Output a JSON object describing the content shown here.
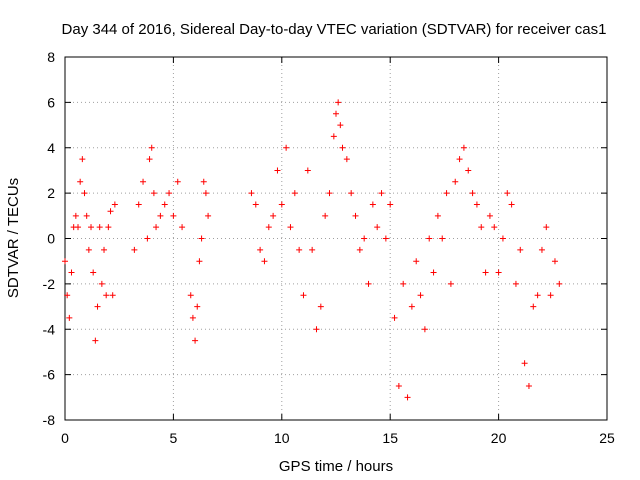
{
  "chart_data": {
    "type": "scatter",
    "title": "Day 344 of 2016, Sidereal Day-to-day VTEC variation (SDTVAR) for receiver cas1",
    "xlabel": "GPS time / hours",
    "ylabel": "SDTVAR / TECUs",
    "xlim": [
      0,
      25
    ],
    "ylim": [
      -8,
      8
    ],
    "xticks": [
      0,
      5,
      10,
      15,
      20,
      25
    ],
    "yticks": [
      -8,
      -6,
      -4,
      -2,
      0,
      2,
      4,
      6,
      8
    ],
    "grid": true,
    "marker": "+",
    "series": [
      {
        "name": "SDTVAR",
        "color": "#ff0000",
        "x": [
          0.0,
          0.1,
          0.2,
          0.3,
          0.4,
          0.5,
          0.6,
          0.7,
          0.8,
          0.9,
          1.0,
          1.1,
          1.2,
          1.3,
          1.4,
          1.5,
          1.6,
          1.7,
          1.8,
          1.9,
          2.0,
          2.1,
          2.2,
          2.3,
          3.2,
          3.4,
          3.6,
          3.8,
          3.9,
          4.0,
          4.1,
          4.2,
          4.4,
          4.6,
          4.8,
          5.0,
          5.2,
          5.4,
          5.8,
          5.9,
          6.0,
          6.1,
          6.2,
          6.3,
          6.4,
          6.5,
          6.6,
          8.6,
          8.8,
          9.0,
          9.2,
          9.4,
          9.6,
          9.8,
          10.0,
          10.2,
          10.4,
          10.6,
          10.8,
          11.0,
          11.2,
          11.4,
          11.6,
          11.8,
          12.0,
          12.2,
          12.4,
          12.5,
          12.6,
          12.7,
          12.8,
          13.0,
          13.2,
          13.4,
          13.6,
          13.8,
          14.0,
          14.2,
          14.4,
          14.6,
          14.8,
          15.0,
          15.2,
          15.4,
          15.6,
          15.8,
          16.0,
          16.2,
          16.4,
          16.6,
          16.8,
          17.0,
          17.2,
          17.4,
          17.6,
          17.8,
          18.0,
          18.2,
          18.4,
          18.6,
          18.8,
          19.0,
          19.2,
          19.4,
          19.6,
          19.8,
          20.0,
          20.2,
          20.4,
          20.6,
          20.8,
          21.0,
          21.2,
          21.4,
          21.6,
          21.8,
          22.0,
          22.2,
          22.4,
          22.6,
          22.8
        ],
        "y": [
          -1.0,
          -2.5,
          -3.5,
          -1.5,
          0.5,
          1.0,
          0.5,
          2.5,
          3.5,
          2.0,
          1.0,
          -0.5,
          0.5,
          -1.5,
          -4.5,
          -3.0,
          0.5,
          -2.0,
          -0.5,
          -2.5,
          0.5,
          1.2,
          -2.5,
          1.5,
          -0.5,
          1.5,
          2.5,
          0.0,
          3.5,
          4.0,
          2.0,
          0.5,
          1.0,
          1.5,
          2.0,
          1.0,
          2.5,
          0.5,
          -2.5,
          -3.5,
          -4.5,
          -3.0,
          -1.0,
          0.0,
          2.5,
          2.0,
          1.0,
          2.0,
          1.5,
          -0.5,
          -1.0,
          0.5,
          1.0,
          3.0,
          1.5,
          4.0,
          0.5,
          2.0,
          -0.5,
          -2.5,
          3.0,
          -0.5,
          -4.0,
          -3.0,
          1.0,
          2.0,
          4.5,
          5.5,
          6.0,
          5.0,
          4.0,
          3.5,
          2.0,
          1.0,
          -0.5,
          0.0,
          -2.0,
          1.5,
          0.5,
          2.0,
          0.0,
          1.5,
          -3.5,
          -6.5,
          -2.0,
          -7.0,
          -3.0,
          -1.0,
          -2.5,
          -4.0,
          0.0,
          -1.5,
          1.0,
          0.0,
          2.0,
          -2.0,
          2.5,
          3.5,
          4.0,
          3.0,
          2.0,
          1.5,
          0.5,
          -1.5,
          1.0,
          0.5,
          -1.5,
          0.0,
          2.0,
          1.5,
          -2.0,
          -0.5,
          -5.5,
          -6.5,
          -3.0,
          -2.5,
          -0.5,
          0.5,
          -2.5,
          -1.0,
          -2.0
        ]
      }
    ]
  }
}
